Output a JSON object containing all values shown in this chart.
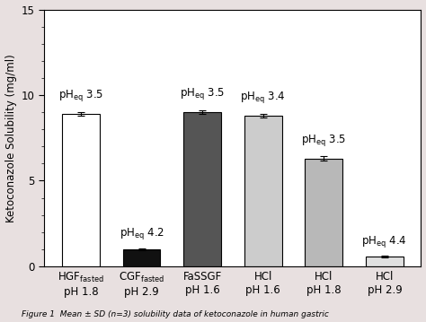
{
  "categories": [
    "HGF$_\\mathregular{fasted}$\npH 1.8",
    "CGF$_\\mathregular{fasted}$\npH 2.9",
    "FaSSGF\npH 1.6",
    "HCl\npH 1.6",
    "HCl\npH 1.8",
    "HCl\npH 2.9"
  ],
  "values": [
    8.9,
    1.0,
    9.0,
    8.8,
    6.3,
    0.55
  ],
  "errors": [
    0.12,
    0.07,
    0.12,
    0.1,
    0.13,
    0.05
  ],
  "bar_colors": [
    "#ffffff",
    "#111111",
    "#555555",
    "#cccccc",
    "#b8b8b8",
    "#e0e0e0"
  ],
  "bar_edgecolors": [
    "#000000",
    "#000000",
    "#000000",
    "#000000",
    "#000000",
    "#000000"
  ],
  "pheq_labels": [
    "pH$_\\mathregular{eq}$ 3.5",
    "pH$_\\mathregular{eq}$ 4.2",
    "pH$_\\mathregular{eq}$ 3.5",
    "pH$_\\mathregular{eq}$ 3.4",
    "pH$_\\mathregular{eq}$ 3.5",
    "pH$_\\mathregular{eq}$ 4.4"
  ],
  "pheq_offsets": [
    0.5,
    0.4,
    0.5,
    0.5,
    0.5,
    0.4
  ],
  "ylabel": "Ketoconazole Solubility (mg/ml)",
  "ylim": [
    0,
    15
  ],
  "yticks": [
    0,
    5,
    10,
    15
  ],
  "plot_bg": "#ffffff",
  "fig_bg": "#e8e0e0",
  "bar_width": 0.62,
  "label_fontsize": 8.5,
  "tick_fontsize": 8.5,
  "pheq_fontsize": 8.5,
  "caption": "Figure 1  Mean ± SD (n=3) solubility data of ketoconazole in human gastric..."
}
